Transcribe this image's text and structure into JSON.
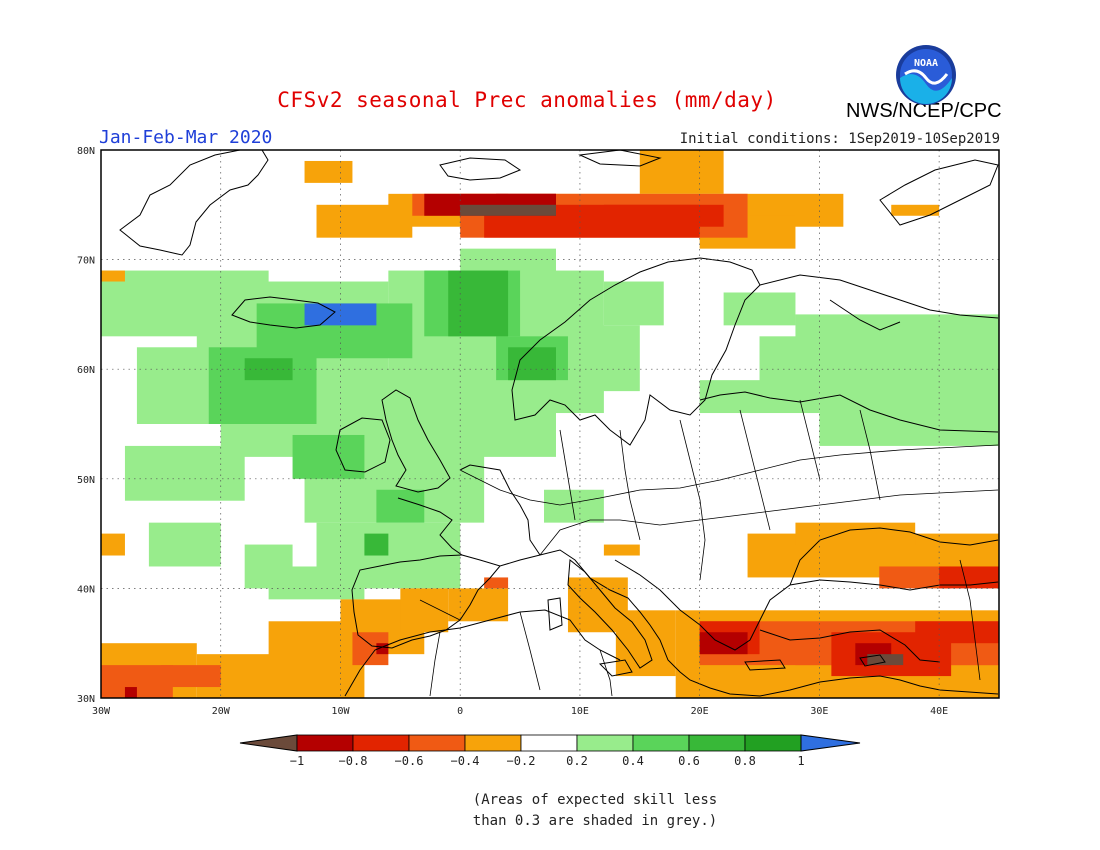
{
  "header": {
    "title": "CFSv2 seasonal Prec anomalies (mm/day)",
    "period": "Jan-Feb-Mar 2020",
    "initial_conditions": "Initial conditions: 1Sep2019-10Sep2019",
    "agency": "NWS/NCEP/CPC",
    "logo_text": "NOAA"
  },
  "map": {
    "lon_labels": [
      "30W",
      "20W",
      "10W",
      "0",
      "10E",
      "20E",
      "30E",
      "40E"
    ],
    "lat_labels": [
      "80N",
      "70N",
      "60N",
      "50N",
      "40N",
      "30N"
    ],
    "extent": {
      "lon": [
        -30,
        45
      ],
      "lat": [
        30,
        80
      ]
    },
    "grid": "dotted",
    "palette": {
      "land_outline": "#000000",
      "neg_brown": "#6b4a3a",
      "neg_dark_red": "#b40000",
      "neg_red": "#e22400",
      "neg_orange_red": "#f05a14",
      "neg_orange": "#f7a30a",
      "neutral": "#ffffff",
      "pos_light_green": "#98ec8c",
      "pos_green": "#5ad45a",
      "pos_mid_green": "#38b838",
      "pos_dark_green": "#22a022",
      "pos_blue": "#2f6fe0"
    }
  },
  "legend": {
    "tick_labels": [
      "−1",
      "−0.8",
      "−0.6",
      "−0.4",
      "−0.2",
      "0.2",
      "0.4",
      "0.6",
      "0.8",
      "1"
    ],
    "colors": [
      "#b40000",
      "#e22400",
      "#f05a14",
      "#f7a30a",
      "#ffffff",
      "#98ec8c",
      "#5ad45a",
      "#38b838",
      "#22a022"
    ],
    "low_arrow_color": "#6b4a3a",
    "high_arrow_color": "#2f6fe0"
  },
  "note": {
    "line1": "(Areas of expected skill less",
    "line2": "than 0.3 are shaded in grey.)"
  }
}
